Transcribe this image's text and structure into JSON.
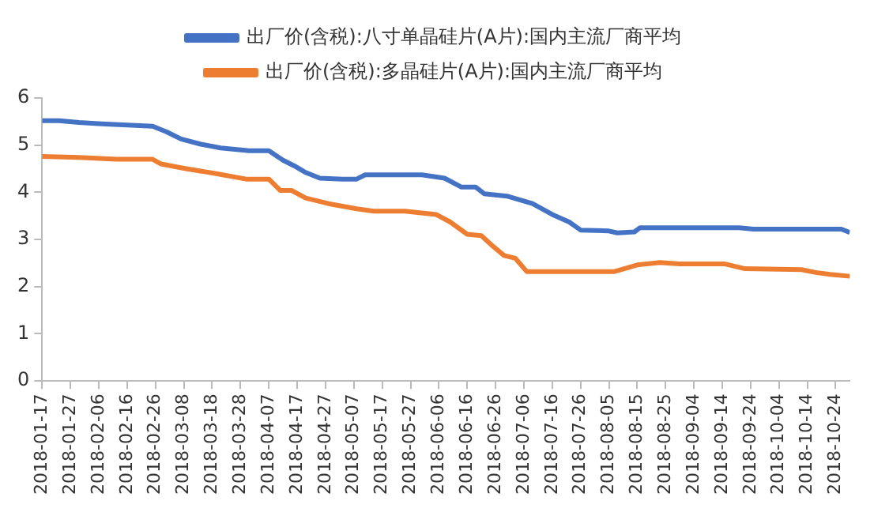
{
  "chart_data": {
    "type": "line",
    "x": [
      "2018-01-17",
      "2018-01-23",
      "2018-01-30",
      "2018-02-07",
      "2018-02-25",
      "2018-03-02",
      "2018-03-07",
      "2018-03-14",
      "2018-03-21",
      "2018-03-31",
      "2018-04-07",
      "2018-04-12",
      "2018-04-16",
      "2018-04-20",
      "2018-04-25",
      "2018-05-03",
      "2018-05-08",
      "2018-05-11",
      "2018-05-31",
      "2018-06-08",
      "2018-06-14",
      "2018-06-19",
      "2018-06-22",
      "2018-06-30",
      "2018-07-09",
      "2018-07-16",
      "2018-07-22",
      "2018-07-26",
      "2018-08-05",
      "2018-08-08",
      "2018-08-14",
      "2018-08-16",
      "2018-09-20",
      "2018-09-25",
      "2018-10-26",
      "2018-10-29"
    ],
    "series": [
      {
        "name": "出厂价(含税):八寸单晶硅片(A片):国内主流厂商平均",
        "color": "#4472c4",
        "values": [
          5.52,
          5.52,
          5.48,
          5.45,
          5.4,
          5.28,
          5.13,
          5.02,
          4.94,
          4.88,
          4.88,
          4.68,
          4.56,
          4.42,
          4.3,
          4.28,
          4.28,
          4.37,
          4.37,
          4.3,
          4.11,
          4.11,
          3.97,
          3.92,
          3.76,
          3.53,
          3.37,
          3.2,
          3.18,
          3.14,
          3.16,
          3.25,
          3.25,
          3.22,
          3.22,
          3.15
        ]
      },
      {
        "name": "出厂价(含税):多晶硅片(A片):国内主流厂商平均",
        "color": "#ed7d31",
        "x": [
          "2018-01-17",
          "2018-01-30",
          "2018-02-12",
          "2018-02-25",
          "2018-02-28",
          "2018-03-08",
          "2018-03-19",
          "2018-03-30",
          "2018-04-07",
          "2018-04-11",
          "2018-04-15",
          "2018-04-20",
          "2018-04-28",
          "2018-05-08",
          "2018-05-14",
          "2018-05-25",
          "2018-06-05",
          "2018-06-10",
          "2018-06-16",
          "2018-06-21",
          "2018-06-25",
          "2018-06-29",
          "2018-07-03",
          "2018-07-07",
          "2018-08-07",
          "2018-08-15",
          "2018-08-23",
          "2018-08-30",
          "2018-09-15",
          "2018-09-22",
          "2018-10-12",
          "2018-10-17",
          "2018-10-22",
          "2018-10-29"
        ],
        "values": [
          4.76,
          4.74,
          4.7,
          4.7,
          4.6,
          4.51,
          4.4,
          4.28,
          4.28,
          4.04,
          4.04,
          3.88,
          3.76,
          3.65,
          3.6,
          3.6,
          3.53,
          3.37,
          3.11,
          3.08,
          2.86,
          2.66,
          2.6,
          2.32,
          2.32,
          2.46,
          2.51,
          2.48,
          2.48,
          2.38,
          2.36,
          2.3,
          2.26,
          2.22
        ]
      }
    ],
    "xlim": [
      "2018-01-17",
      "2018-10-29"
    ],
    "xticks": [
      "2018-01-17",
      "2018-01-27",
      "2018-02-06",
      "2018-02-16",
      "2018-02-26",
      "2018-03-08",
      "2018-03-18",
      "2018-03-28",
      "2018-04-07",
      "2018-04-17",
      "2018-04-27",
      "2018-05-07",
      "2018-05-17",
      "2018-05-27",
      "2018-06-06",
      "2018-06-16",
      "2018-06-26",
      "2018-07-06",
      "2018-07-16",
      "2018-07-26",
      "2018-08-05",
      "2018-08-15",
      "2018-08-25",
      "2018-09-04",
      "2018-09-14",
      "2018-09-24",
      "2018-10-04",
      "2018-10-14",
      "2018-10-24"
    ],
    "ylim": [
      0,
      6
    ],
    "yticks": [
      0,
      1,
      2,
      3,
      4,
      5,
      6
    ],
    "grid": false,
    "legend": "top",
    "marker": "none",
    "line_style": "solid"
  }
}
